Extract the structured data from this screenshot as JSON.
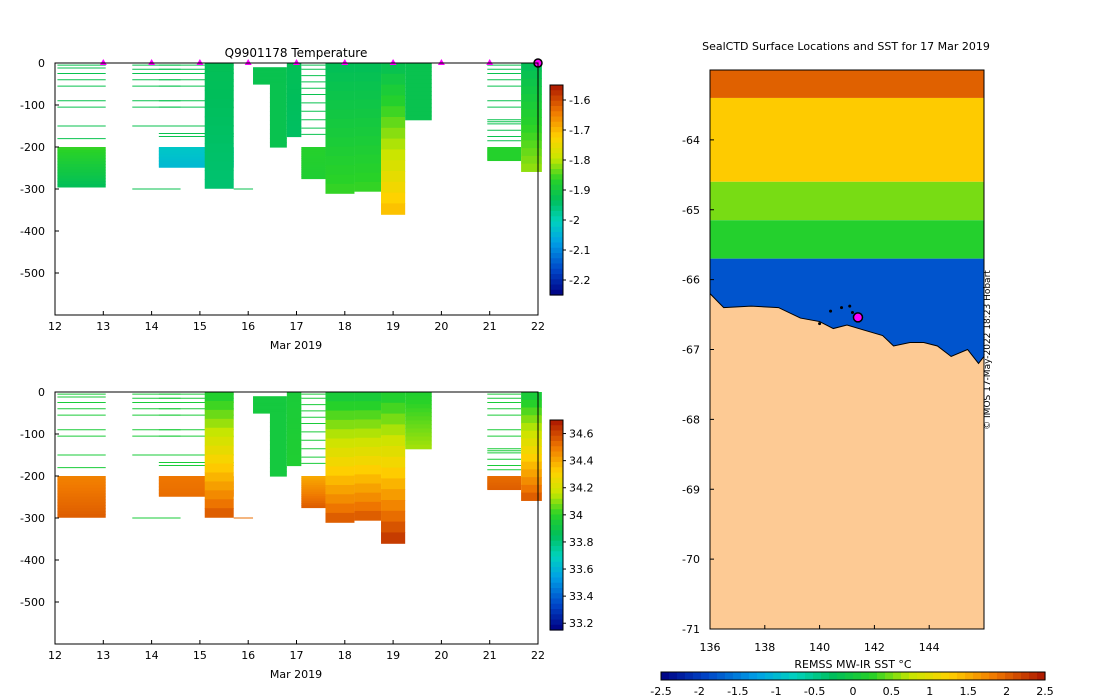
{
  "chart_data": [
    {
      "type": "heatmap",
      "title": "Q9901178  Temperature",
      "xlabel": "Mar 2019",
      "ylabel": "",
      "x_ticks": [
        "12",
        "13",
        "14",
        "15",
        "16",
        "17",
        "18",
        "19",
        "20",
        "21",
        "22"
      ],
      "xlim": [
        12,
        22
      ],
      "y_ticks": [
        "0",
        "-100",
        "-200",
        "-300",
        "-400",
        "-500"
      ],
      "ylim": [
        -600,
        0
      ],
      "colorbar": {
        "ticks": [
          "-1.6",
          "-1.7",
          "-1.8",
          "-1.9",
          "-2",
          "-2.1",
          "-2.2"
        ],
        "range": [
          -2.25,
          -1.55
        ]
      },
      "surface_markers": [
        13,
        14,
        15,
        16,
        17,
        18,
        19,
        20,
        21,
        22
      ],
      "profiles": [
        {
          "x0": 12.05,
          "x1": 13.05,
          "fill_top": -200,
          "fill_bottom": -295,
          "fill_top_value": -1.86,
          "fill_bottom_value": -1.93,
          "lines": [
            -5,
            -12,
            -25,
            -40,
            -55,
            -90,
            -105,
            -150,
            -180
          ],
          "line_value": -1.92
        },
        {
          "x0": 13.6,
          "x1": 14.6,
          "fill_top": 0,
          "fill_bottom": 0,
          "fill_top_value": -1.9,
          "fill_bottom_value": -1.9,
          "lines": [
            -5,
            -15,
            -25,
            -40,
            -55,
            -90,
            -105,
            -150,
            -300
          ],
          "line_value": -1.92
        },
        {
          "x0": 14.15,
          "x1": 15.7,
          "fill_top": -200,
          "fill_bottom": -248,
          "fill_top_value": -2.02,
          "fill_bottom_value": -2.04,
          "lines": [
            -5,
            -15,
            -25,
            -40,
            -55,
            -90,
            -105,
            -150,
            -168,
            -175
          ],
          "line_value": -1.92
        },
        {
          "x0": 15.1,
          "x1": 15.7,
          "fill_top": 0,
          "fill_bottom": -298,
          "fill_top_value": -1.93,
          "fill_bottom_value": -1.95,
          "lines": [],
          "line_value": -1.92
        },
        {
          "x0": 15.7,
          "x1": 16.1,
          "fill_top": 0,
          "fill_bottom": 0,
          "fill_top_value": -1.9,
          "fill_bottom_value": -1.9,
          "lines": [
            -300
          ],
          "line_value": -1.92
        },
        {
          "x0": 16.1,
          "x1": 16.8,
          "fill_top": -10,
          "fill_bottom": -50,
          "fill_top_value": -1.92,
          "fill_bottom_value": -1.92,
          "lines": [],
          "line_value": -1.92
        },
        {
          "x0": 16.45,
          "x1": 16.8,
          "fill_top": -50,
          "fill_bottom": -200,
          "fill_top_value": -1.92,
          "fill_bottom_value": -1.92,
          "lines": [],
          "line_value": -1.92
        },
        {
          "x0": 16.8,
          "x1": 17.1,
          "fill_top": 0,
          "fill_bottom": -175,
          "fill_top_value": -1.93,
          "fill_bottom_value": -1.94,
          "lines": [],
          "line_value": -1.92
        },
        {
          "x0": 17.1,
          "x1": 17.6,
          "fill_top": -200,
          "fill_bottom": -275,
          "fill_top_value": -1.87,
          "fill_bottom_value": -1.88,
          "lines": [
            -5,
            -15,
            -30,
            -45,
            -60,
            -75,
            -95,
            -115,
            -135,
            -155,
            -170
          ],
          "line_value": -1.92
        },
        {
          "x0": 17.6,
          "x1": 18.2,
          "fill_top": 0,
          "fill_bottom": -310,
          "fill_top_value": -1.93,
          "fill_bottom_value": -1.86,
          "lines": [],
          "line_value": -1.92
        },
        {
          "x0": 18.2,
          "x1": 18.75,
          "fill_top": 0,
          "fill_bottom": -305,
          "fill_top_value": -1.93,
          "fill_bottom_value": -1.86,
          "lines": [],
          "line_value": -1.92
        },
        {
          "x0": 18.75,
          "x1": 19.25,
          "fill_top": 0,
          "fill_bottom": -360,
          "fill_top_value": -1.92,
          "fill_bottom_value": -1.71,
          "lines": [],
          "line_value": -1.92
        },
        {
          "x0": 19.25,
          "x1": 19.8,
          "fill_top": 0,
          "fill_bottom": -135,
          "fill_top_value": -1.92,
          "fill_bottom_value": -1.92,
          "lines": [],
          "line_value": -1.92
        },
        {
          "x0": 20.95,
          "x1": 21.65,
          "fill_top": -200,
          "fill_bottom": -232,
          "fill_top_value": -1.87,
          "fill_bottom_value": -1.87,
          "lines": [
            -5,
            -15,
            -25,
            -40,
            -55,
            -90,
            -105,
            -135,
            -140,
            -145,
            -160,
            -175,
            -185
          ],
          "line_value": -1.92
        },
        {
          "x0": 21.65,
          "x1": 22.08,
          "fill_top": 0,
          "fill_bottom": -258,
          "fill_top_value": -1.93,
          "fill_bottom_value": -1.82,
          "lines": [],
          "line_value": -1.92
        }
      ]
    },
    {
      "type": "heatmap",
      "title": "",
      "xlabel": "Mar 2019",
      "ylabel": "",
      "x_ticks": [
        "12",
        "13",
        "14",
        "15",
        "16",
        "17",
        "18",
        "19",
        "20",
        "21",
        "22"
      ],
      "xlim": [
        12,
        22
      ],
      "y_ticks": [
        "0",
        "-100",
        "-200",
        "-300",
        "-400",
        "-500"
      ],
      "ylim": [
        -600,
        0
      ],
      "colorbar": {
        "ticks": [
          "34.6",
          "34.4",
          "34.2",
          "34",
          "33.8",
          "33.6",
          "33.4",
          "33.2"
        ],
        "range": [
          33.15,
          34.7
        ]
      },
      "profiles": [
        {
          "x0": 12.05,
          "x1": 13.05,
          "fill_top": -200,
          "fill_bottom": -298,
          "fill_top_value": 34.48,
          "fill_bottom_value": 34.55,
          "lines": [
            -5,
            -12,
            -25,
            -40,
            -55,
            -90,
            -105,
            -150,
            -180
          ],
          "line_value": 33.95
        },
        {
          "x0": 13.6,
          "x1": 14.6,
          "fill_top": 0,
          "fill_bottom": 0,
          "fill_top_value": 34,
          "fill_bottom_value": 34,
          "lines": [
            -5,
            -15,
            -25,
            -40,
            -55,
            -90,
            -105,
            -150,
            -300
          ],
          "line_value": 33.95
        },
        {
          "x0": 14.15,
          "x1": 15.7,
          "fill_top": -200,
          "fill_bottom": -248,
          "fill_top_value": 34.5,
          "fill_bottom_value": 34.52,
          "lines": [
            -5,
            -15,
            -25,
            -40,
            -55,
            -90,
            -105,
            -150,
            -168,
            -175
          ],
          "line_value": 33.95
        },
        {
          "x0": 15.1,
          "x1": 15.7,
          "fill_top": 0,
          "fill_bottom": -298,
          "fill_top_value": 33.98,
          "fill_bottom_value": 34.55,
          "lines": [],
          "line_value": 33.95
        },
        {
          "x0": 15.7,
          "x1": 16.1,
          "fill_top": 0,
          "fill_bottom": 0,
          "fill_top_value": 34,
          "fill_bottom_value": 34,
          "lines": [
            -300
          ],
          "line_value": 34.52
        },
        {
          "x0": 16.1,
          "x1": 16.8,
          "fill_top": -10,
          "fill_bottom": -50,
          "fill_top_value": 33.93,
          "fill_bottom_value": 33.93,
          "lines": [],
          "line_value": 33.95
        },
        {
          "x0": 16.45,
          "x1": 16.8,
          "fill_top": -50,
          "fill_bottom": -200,
          "fill_top_value": 33.93,
          "fill_bottom_value": 33.93,
          "lines": [],
          "line_value": 33.95
        },
        {
          "x0": 16.8,
          "x1": 17.1,
          "fill_top": 0,
          "fill_bottom": -175,
          "fill_top_value": 33.95,
          "fill_bottom_value": 33.97,
          "lines": [],
          "line_value": 33.95
        },
        {
          "x0": 17.1,
          "x1": 17.6,
          "fill_top": -200,
          "fill_bottom": -275,
          "fill_top_value": 34.4,
          "fill_bottom_value": 34.55,
          "lines": [
            -5,
            -15,
            -30,
            -45,
            -60,
            -75,
            -95,
            -115,
            -135,
            -155,
            -170
          ],
          "line_value": 33.95
        },
        {
          "x0": 17.6,
          "x1": 18.2,
          "fill_top": 0,
          "fill_bottom": -310,
          "fill_top_value": 33.95,
          "fill_bottom_value": 34.55,
          "lines": [],
          "line_value": 33.95
        },
        {
          "x0": 18.2,
          "x1": 18.75,
          "fill_top": 0,
          "fill_bottom": -305,
          "fill_top_value": 33.95,
          "fill_bottom_value": 34.55,
          "lines": [],
          "line_value": 33.95
        },
        {
          "x0": 18.75,
          "x1": 19.25,
          "fill_top": 0,
          "fill_bottom": -360,
          "fill_top_value": 33.98,
          "fill_bottom_value": 34.62,
          "lines": [],
          "line_value": 33.95
        },
        {
          "x0": 19.25,
          "x1": 19.8,
          "fill_top": 0,
          "fill_bottom": -135,
          "fill_top_value": 33.98,
          "fill_bottom_value": 34.12,
          "lines": [],
          "line_value": 33.95
        },
        {
          "x0": 20.95,
          "x1": 21.65,
          "fill_top": -200,
          "fill_bottom": -232,
          "fill_top_value": 34.52,
          "fill_bottom_value": 34.55,
          "lines": [
            -5,
            -15,
            -25,
            -40,
            -55,
            -90,
            -105,
            -135,
            -140,
            -145,
            -160,
            -175,
            -185
          ],
          "line_value": 33.95
        },
        {
          "x0": 21.65,
          "x1": 22.08,
          "fill_top": 0,
          "fill_bottom": -258,
          "fill_top_value": 33.95,
          "fill_bottom_value": 34.55,
          "lines": [],
          "line_value": 33.95
        }
      ]
    },
    {
      "type": "heatmap",
      "title": "SealCTD Surface Locations and SST for 17 Mar 2019",
      "xlabel": "",
      "ylabel": "",
      "x_ticks": [
        "136",
        "138",
        "140",
        "142",
        "144"
      ],
      "xlim": [
        136,
        146
      ],
      "y_ticks": [
        "-64",
        "-65",
        "-66",
        "-67",
        "-68",
        "-69",
        "-70",
        "-71"
      ],
      "ylim": [
        -71,
        -63
      ],
      "colorbar": {
        "label": "REMSS MW-IR SST °C",
        "ticks": [
          "-2.5",
          "-2",
          "-1.5",
          "-1",
          "-0.5",
          "0",
          "0.5",
          "1",
          "1.5",
          "2",
          "2.5"
        ],
        "range": [
          -2.5,
          2.5
        ]
      },
      "sst_bands": [
        {
          "lat_north": -63.0,
          "lat_south": -63.4,
          "value": 2.0
        },
        {
          "lat_north": -63.4,
          "lat_south": -64.6,
          "value": 1.3
        },
        {
          "lat_north": -64.6,
          "lat_south": -65.15,
          "value": 0.5
        },
        {
          "lat_north": -65.15,
          "lat_south": -65.7,
          "value": 0.2
        },
        {
          "lat_north": -65.7,
          "lat_south": -67.2,
          "value": -1.8
        }
      ],
      "land_boundary": [
        [
          136.0,
          -66.2
        ],
        [
          136.5,
          -66.4
        ],
        [
          137.5,
          -66.38
        ],
        [
          138.5,
          -66.4
        ],
        [
          139.3,
          -66.55
        ],
        [
          140.0,
          -66.6
        ],
        [
          140.5,
          -66.7
        ],
        [
          141.0,
          -66.65
        ],
        [
          141.6,
          -66.72
        ],
        [
          142.3,
          -66.8
        ],
        [
          142.7,
          -66.95
        ],
        [
          143.3,
          -66.9
        ],
        [
          143.8,
          -66.9
        ],
        [
          144.3,
          -66.95
        ],
        [
          144.8,
          -67.1
        ],
        [
          145.4,
          -67.0
        ],
        [
          145.8,
          -67.2
        ],
        [
          146.0,
          -67.1
        ]
      ],
      "positions": [
        {
          "lon": 140.0,
          "lat": -66.63
        },
        {
          "lon": 140.4,
          "lat": -66.45
        },
        {
          "lon": 140.8,
          "lat": -66.4
        },
        {
          "lon": 141.1,
          "lat": -66.38
        },
        {
          "lon": 141.2,
          "lat": -66.47
        }
      ],
      "current_position": {
        "lon": 141.4,
        "lat": -66.54
      },
      "credit": "© IMOS 17-May-2022 18:23 Hobart"
    }
  ]
}
